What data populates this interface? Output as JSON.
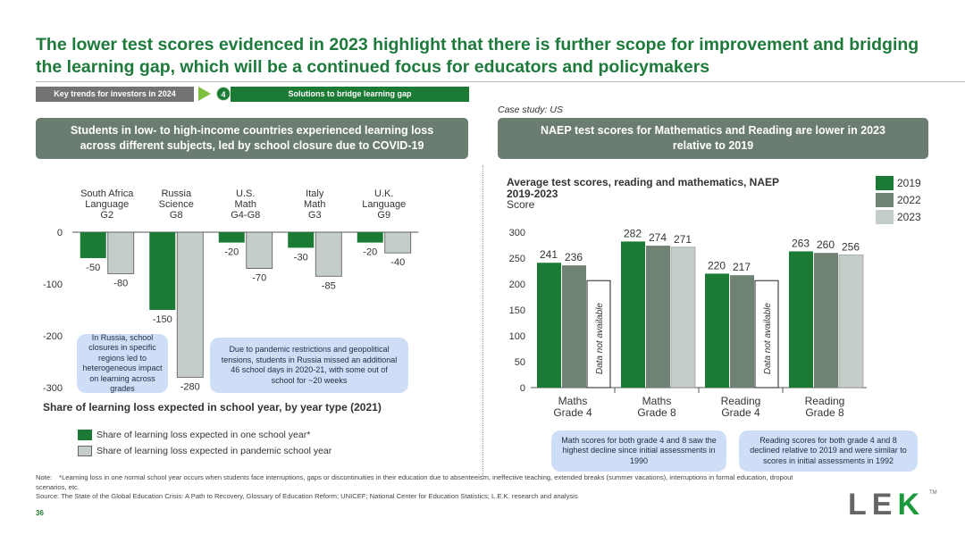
{
  "header": {
    "title": "The lower test scores evidenced in 2023 highlight that there is further scope for improvement and bridging the learning gap, which will be a continued focus for educators and policymakers",
    "nav_left": "Key trends for investors in 2024",
    "nav_step": "4",
    "nav_right": "Solutions to bridge learning gap",
    "case_study": "Case study: US"
  },
  "left_panel": {
    "heading": "Students in low- to high-income countries experienced learning loss across different subjects, led by school closure due to COVID-19",
    "chart_title": "Share of learning loss expected in school year, by year type (2021)",
    "legend_one": "Share of learning loss expected in one school year*",
    "legend_pandemic": "Share of learning loss expected in pandemic school year",
    "callout_russia": "In Russia, school closures in specific regions led to heterogeneous impact on learning across grades",
    "callout_pandemic": "Due to pandemic restrictions and geopolitical tensions, students in Russia missed an additional 46 school days in 2020-21, with some out of school for ~20 weeks"
  },
  "right_panel": {
    "heading": "NAEP test scores for Mathematics and Reading are lower in 2023 relative to 2019",
    "chart_title_line1": "Average test scores, reading and mathematics, NAEP",
    "chart_title_line2": "2019-2023",
    "chart_unit": "Score",
    "not_available": "Data not available",
    "callout_math": "Math scores for both grade 4 and 8 saw the highest decline since initial assessments in 1990",
    "callout_reading": "Reading scores for both grade 4 and 8 declined relative to 2019 and were similar to scores in initial assessments in 1992"
  },
  "colors": {
    "dark_green": "#1b7a33",
    "grey_green": "#6f8274",
    "light_grey": "#c4cdc8",
    "callout": "#cfdef7"
  },
  "chart_data": [
    {
      "type": "bar",
      "title": "Share of learning loss expected in school year, by year type (2021)",
      "categories": [
        [
          "South Africa",
          "Language",
          "G2"
        ],
        [
          "Russia",
          "Science",
          "G8"
        ],
        [
          "U.S.",
          "Math",
          "G4-G8"
        ],
        [
          "Italy",
          "Math",
          "G3"
        ],
        [
          "U.K.",
          "Language",
          "G9"
        ]
      ],
      "series": [
        {
          "name": "Share of learning loss expected in one school year*",
          "values": [
            -50,
            -150,
            -20,
            -30,
            -20
          ]
        },
        {
          "name": "Share of learning loss expected in pandemic school year",
          "values": [
            -80,
            -280,
            -70,
            -85,
            -40
          ]
        }
      ],
      "ylim": [
        -300,
        0
      ],
      "yticks": [
        0,
        -100,
        -200,
        -300
      ]
    },
    {
      "type": "bar",
      "title": "Average test scores, reading and mathematics, NAEP 2019-2023",
      "ylabel": "Score",
      "categories": [
        [
          "Maths",
          "Grade 4"
        ],
        [
          "Maths",
          "Grade 8"
        ],
        [
          "Reading",
          "Grade 4"
        ],
        [
          "Reading",
          "Grade 8"
        ]
      ],
      "series": [
        {
          "name": "2019",
          "values": [
            241,
            282,
            220,
            263
          ]
        },
        {
          "name": "2022",
          "values": [
            236,
            274,
            217,
            260
          ]
        },
        {
          "name": "2023",
          "values": [
            null,
            271,
            null,
            256
          ]
        }
      ],
      "ylim": [
        0,
        300
      ],
      "yticks": [
        0,
        50,
        100,
        150,
        200,
        250,
        300
      ]
    }
  ],
  "footer": {
    "note_label": "Note:",
    "note": "*Learning loss in one normal school year occurs when students face interruptions, gaps or discontinuities in their education due to absenteeism, ineffective teaching, extended breaks (summer vacations), interruptions in formal education, dropout scenarios, etc.",
    "source": "Source: The State of the Global Education Crisis: A Path to Recovery, Glossary of Education Reform; UNICEF; National Center for Education Statistics; L.E.K. research and analysis",
    "page_number": "36",
    "logo_l": "L",
    "logo_e": "E",
    "logo_k": "K",
    "logo_tm": "TM"
  }
}
